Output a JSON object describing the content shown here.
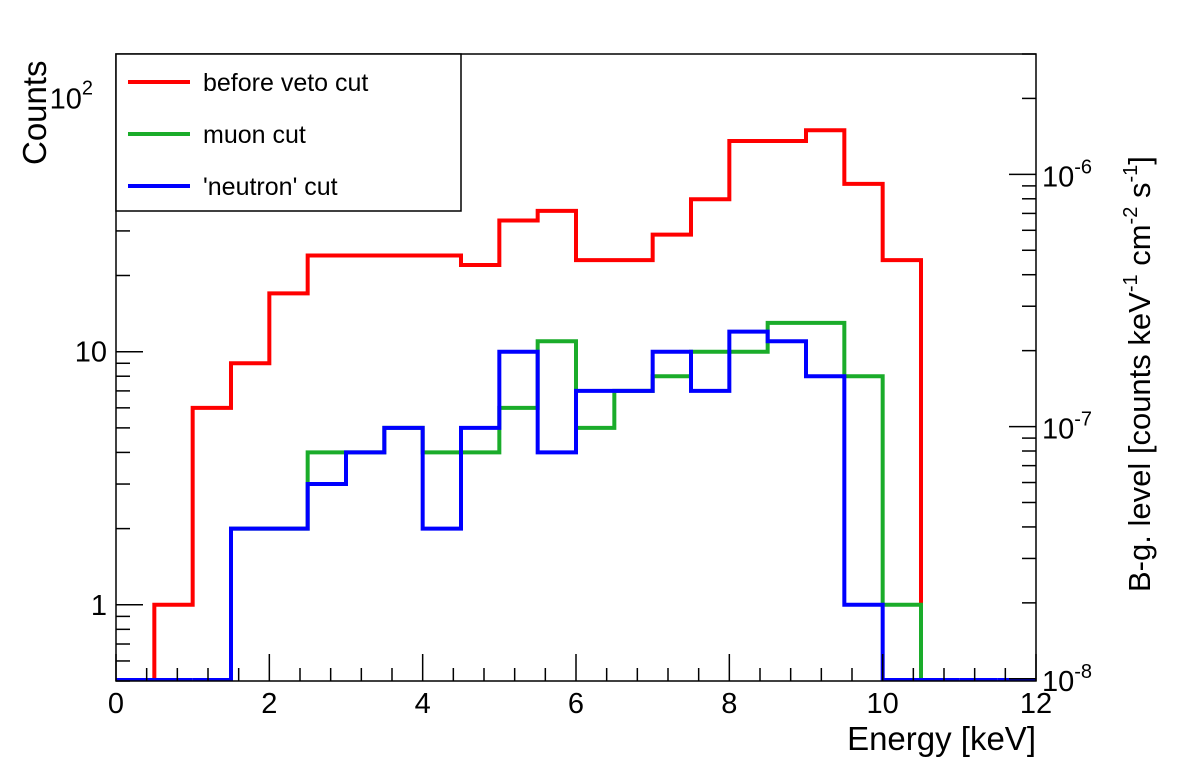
{
  "colors": {
    "before_veto": "#ff0000",
    "muon": "#1aac2a",
    "neutron": "#0000ff",
    "axis": "#000000",
    "background": "#ffffff"
  },
  "chart_data": {
    "type": "line",
    "step": true,
    "xlabel": "Energy [keV]",
    "ylabel": "Counts",
    "y2label_parts": [
      "B-g. level [counts keV",
      "-1",
      " cm",
      "-2",
      " s",
      "-1",
      "]"
    ],
    "xlim": [
      0,
      12
    ],
    "ylim": [
      0.5,
      150
    ],
    "yscale": "log",
    "xticks": [
      0,
      2,
      4,
      6,
      8,
      10,
      12
    ],
    "xtick_labels": [
      "0",
      "2",
      "4",
      "6",
      "8",
      "10",
      "12"
    ],
    "yticks": [
      {
        "value": 1,
        "label": "1",
        "base": "",
        "exp": ""
      },
      {
        "value": 10,
        "label": "10",
        "base": "",
        "exp": ""
      },
      {
        "value": 100,
        "label": "",
        "base": "10",
        "exp": "2"
      }
    ],
    "y2lim": [
      9.8e-09,
      3e-06
    ],
    "y2scale": "log",
    "y2ticks": [
      {
        "value": 1e-08,
        "base": "10",
        "exp": "-8"
      },
      {
        "value": 1e-07,
        "base": "10",
        "exp": "-7"
      },
      {
        "value": 1e-06,
        "base": "10",
        "exp": "-6"
      }
    ],
    "grid": false,
    "legend": "top-left",
    "bin_edges": [
      0,
      0.5,
      1,
      1.5,
      2,
      2.5,
      3,
      3.5,
      4,
      4.5,
      5,
      5.5,
      6,
      6.5,
      7,
      7.5,
      8,
      8.5,
      9,
      9.5,
      10,
      10.5,
      11,
      11.5,
      12
    ],
    "series": [
      {
        "name": "before veto cut",
        "color": "#ff0000",
        "values": [
          0,
          1,
          6,
          9,
          17,
          24,
          24,
          24,
          24,
          22,
          33,
          36,
          23,
          23,
          29,
          40,
          68,
          68,
          75,
          46,
          23,
          0,
          0,
          0
        ]
      },
      {
        "name": "muon cut",
        "color": "#1aac2a",
        "values": [
          0,
          0,
          0,
          2,
          2,
          4,
          4,
          5,
          4,
          4,
          6,
          11,
          5,
          7,
          8,
          10,
          10,
          13,
          13,
          8,
          1,
          0,
          0,
          0
        ]
      },
      {
        "name": "'neutron' cut",
        "color": "#0000ff",
        "values": [
          0,
          0,
          0,
          2,
          2,
          3,
          4,
          5,
          2,
          5,
          10,
          4,
          7,
          7,
          10,
          7,
          12,
          11,
          8,
          1,
          0,
          0,
          0,
          0
        ]
      }
    ]
  }
}
